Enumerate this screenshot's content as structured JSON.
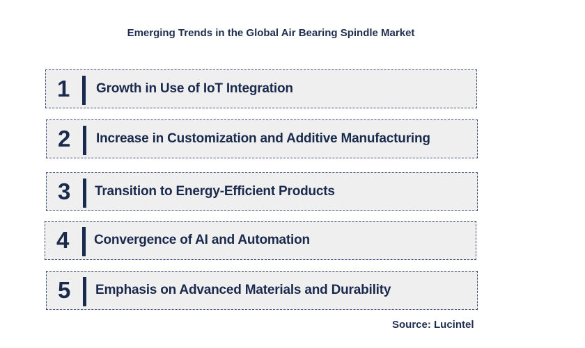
{
  "title": "Emerging Trends in the Global Air Bearing Spindle Market",
  "trends": [
    {
      "number": "1",
      "label": "Growth in Use of IoT Integration"
    },
    {
      "number": "2",
      "label": "Increase in Customization and Additive Manufacturing"
    },
    {
      "number": "3",
      "label": "Transition to Energy-Efficient Products"
    },
    {
      "number": "4",
      "label": "Convergence of AI and Automation"
    },
    {
      "number": "5",
      "label": "Emphasis on Advanced Materials and Durability"
    }
  ],
  "source": "Source: Lucintel",
  "colors": {
    "text": "#1a2a4d",
    "box_fill": "#efefef",
    "box_border": "#3c4e78"
  }
}
